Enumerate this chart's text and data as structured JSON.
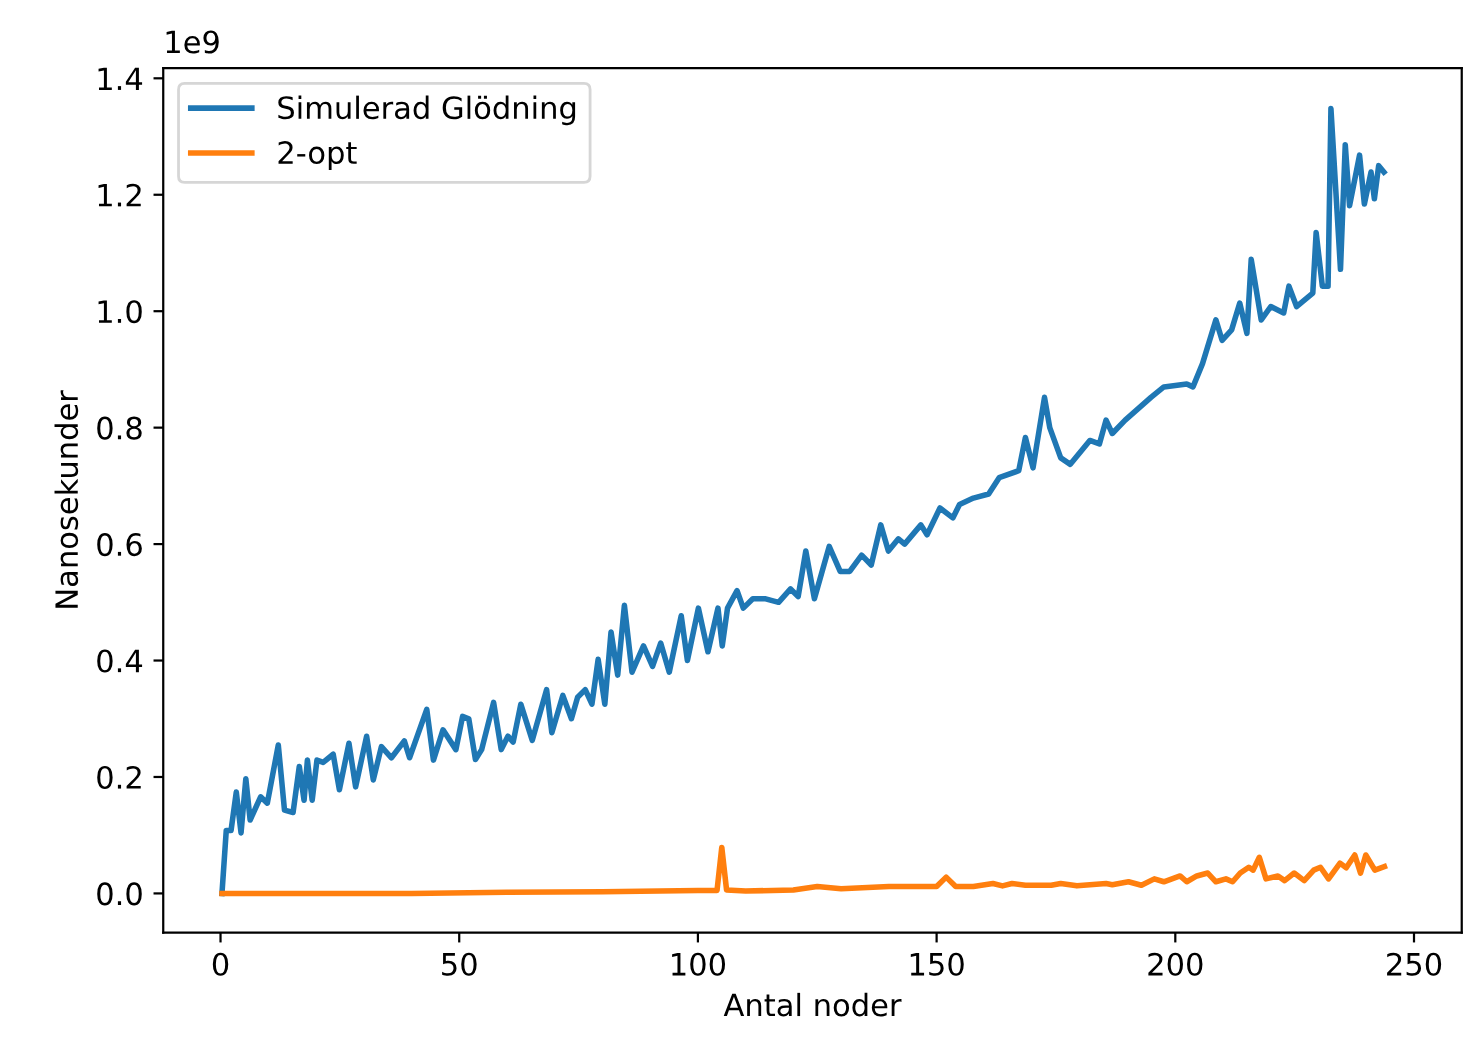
{
  "chart_data": {
    "type": "line",
    "xlabel": "Antal noder",
    "ylabel": "Nanosekunder",
    "annotations": [
      "1e9"
    ],
    "xlim": [
      -12,
      260
    ],
    "xticks": [
      0,
      50,
      100,
      150,
      200,
      250
    ],
    "ylim": [
      -0.0675,
      1.4175
    ],
    "yticks": [
      {
        "value": 0,
        "label": "0.0"
      },
      0.2,
      0.4,
      0.6,
      0.8,
      {
        "value": 1,
        "label": "1.0"
      },
      1.2,
      1.4
    ],
    "grid": false,
    "legend": "top left",
    "marker": "none",
    "line_style": "solid",
    "series": [
      {
        "name": "Simulerad Glödning",
        "color": "#1f77b4",
        "x": [
          0.3,
          1.2,
          2.2,
          3.3,
          4.3,
          5.3,
          6.2,
          8.4,
          9.8,
          12.1,
          13.4,
          15.2,
          16.5,
          17.5,
          18.2,
          19.2,
          20.2,
          21.5,
          23.6,
          24.9,
          26.9,
          28.3,
          30.6,
          32,
          33.7,
          35.8,
          38.5,
          39.6,
          43.2,
          44.6,
          46.6,
          49.3,
          50.7,
          52,
          53.4,
          54.7,
          57.2,
          58.8,
          60.2,
          61.3,
          62.9,
          65.3,
          68.3,
          69.4,
          71.7,
          73.5,
          74.8,
          76.4,
          77.8,
          79.1,
          80.5,
          81.8,
          83.2,
          84.6,
          86.2,
          88.6,
          90.5,
          92.2,
          94,
          96.5,
          97.8,
          100.1,
          102.1,
          104.2,
          105.1,
          106.2,
          108.2,
          109.5,
          111.5,
          114.2,
          116.9,
          119.4,
          121,
          122.6,
          124.4,
          127.5,
          129.8,
          131.8,
          134.3,
          136.3,
          138.3,
          139.9,
          142,
          143.3,
          146.7,
          148,
          150.7,
          153.4,
          154.8,
          157.7,
          160.9,
          163.1,
          167.2,
          168.6,
          170.2,
          172.6,
          173.7,
          176,
          178,
          182.1,
          184.1,
          185.5,
          186.8,
          189.5,
          194.9,
          197.6,
          202.4,
          203.7,
          205.7,
          208.5,
          209.8,
          211.8,
          213.5,
          215,
          215.9,
          218,
          220,
          222.7,
          223.8,
          225.4,
          228.8,
          229.5,
          230.8,
          232,
          232.6,
          234.6,
          235.6,
          236.5,
          238.6,
          239.6,
          241,
          241.7,
          242.6,
          243.7
        ],
        "values": [
          0.0,
          0.108,
          0.108,
          0.174,
          0.104,
          0.197,
          0.126,
          0.166,
          0.155,
          0.255,
          0.143,
          0.139,
          0.218,
          0.16,
          0.229,
          0.16,
          0.229,
          0.225,
          0.239,
          0.178,
          0.258,
          0.183,
          0.27,
          0.195,
          0.252,
          0.233,
          0.262,
          0.233,
          0.316,
          0.229,
          0.281,
          0.247,
          0.304,
          0.3,
          0.23,
          0.247,
          0.328,
          0.247,
          0.27,
          0.26,
          0.325,
          0.263,
          0.35,
          0.276,
          0.34,
          0.3,
          0.337,
          0.35,
          0.325,
          0.402,
          0.325,
          0.449,
          0.375,
          0.495,
          0.38,
          0.425,
          0.39,
          0.43,
          0.38,
          0.477,
          0.4,
          0.49,
          0.415,
          0.49,
          0.425,
          0.49,
          0.52,
          0.49,
          0.506,
          0.506,
          0.5,
          0.523,
          0.51,
          0.588,
          0.506,
          0.596,
          0.553,
          0.553,
          0.581,
          0.564,
          0.633,
          0.588,
          0.609,
          0.6,
          0.633,
          0.616,
          0.662,
          0.645,
          0.668,
          0.679,
          0.686,
          0.714,
          0.726,
          0.783,
          0.731,
          0.852,
          0.8,
          0.748,
          0.737,
          0.778,
          0.772,
          0.813,
          0.79,
          0.813,
          0.852,
          0.87,
          0.875,
          0.87,
          0.91,
          0.985,
          0.95,
          0.968,
          1.014,
          0.962,
          1.089,
          0.985,
          1.008,
          0.997,
          1.043,
          1.008,
          1.031,
          1.135,
          1.043,
          1.043,
          1.348,
          1.072,
          1.286,
          1.181,
          1.268,
          1.184,
          1.239,
          1.193,
          1.25,
          1.239
        ]
      },
      {
        "name": "2-opt",
        "color": "#ff7f0e",
        "x": [
          0.3,
          20,
          40,
          60,
          80,
          100,
          104,
          105,
          106,
          110,
          120,
          125,
          130,
          140,
          150,
          152,
          154,
          157.7,
          161.8,
          163.8,
          165.8,
          168.6,
          174,
          176,
          179.4,
          185.5,
          186.8,
          190.2,
          192.9,
          195.6,
          197.6,
          201,
          202.4,
          204.5,
          206.8,
          208.5,
          210.6,
          212,
          213.6,
          215.4,
          216.3,
          217.6,
          219,
          221.5,
          222.9,
          224.9,
          227,
          229,
          230.4,
          232.1,
          234.5,
          235.8,
          237.6,
          238.8,
          239.9,
          241.8,
          243.8
        ],
        "values": [
          0.0,
          0.0,
          0.0,
          0.002,
          0.003,
          0.005,
          0.005,
          0.079,
          0.006,
          0.004,
          0.006,
          0.012,
          0.008,
          0.012,
          0.012,
          0.028,
          0.012,
          0.012,
          0.017,
          0.013,
          0.017,
          0.014,
          0.014,
          0.017,
          0.013,
          0.017,
          0.015,
          0.02,
          0.014,
          0.025,
          0.02,
          0.03,
          0.02,
          0.03,
          0.035,
          0.02,
          0.025,
          0.02,
          0.035,
          0.045,
          0.04,
          0.062,
          0.025,
          0.03,
          0.022,
          0.035,
          0.022,
          0.04,
          0.045,
          0.025,
          0.052,
          0.044,
          0.066,
          0.035,
          0.066,
          0.04,
          0.046
        ]
      }
    ]
  }
}
